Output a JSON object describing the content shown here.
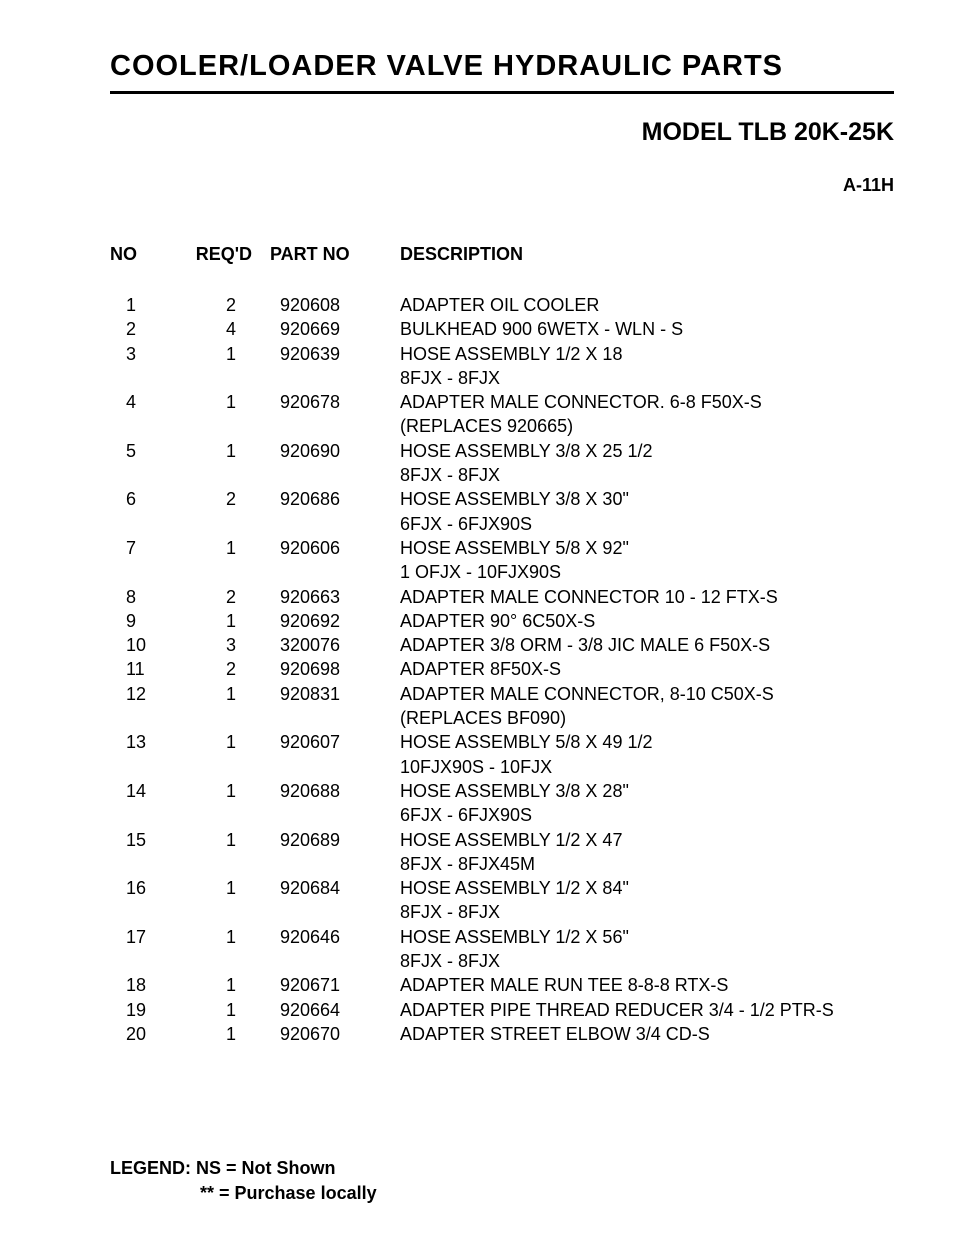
{
  "title": "COOLER/LOADER VALVE HYDRAULIC PARTS",
  "model": "MODEL TLB 20K-25K",
  "docCode": "A-11H",
  "headers": {
    "no": "NO",
    "reqd": "REQ'D",
    "partno": "PART NO",
    "description": "DESCRIPTION"
  },
  "rows": [
    {
      "no": "1",
      "reqd": "2",
      "partno": "920608",
      "desc": [
        "ADAPTER OIL COOLER"
      ]
    },
    {
      "no": "2",
      "reqd": "4",
      "partno": "920669",
      "desc": [
        "BULKHEAD 900 6WETX - WLN - S"
      ]
    },
    {
      "no": "3",
      "reqd": "1",
      "partno": "920639",
      "desc": [
        "HOSE ASSEMBLY 1/2 X 18",
        "8FJX - 8FJX"
      ]
    },
    {
      "no": "4",
      "reqd": "1",
      "partno": "920678",
      "desc": [
        "ADAPTER MALE CONNECTOR. 6-8 F50X-S",
        "(REPLACES 920665)"
      ]
    },
    {
      "no": "5",
      "reqd": "1",
      "partno": "920690",
      "desc": [
        "HOSE ASSEMBLY 3/8 X 25 1/2",
        "8FJX - 8FJX"
      ]
    },
    {
      "no": "6",
      "reqd": "2",
      "partno": "920686",
      "desc": [
        "HOSE ASSEMBLY 3/8 X 30\"",
        "6FJX - 6FJX90S"
      ]
    },
    {
      "no": "7",
      "reqd": "1",
      "partno": "920606",
      "desc": [
        "HOSE ASSEMBLY 5/8 X 92\"",
        "1 OFJX - 10FJX90S"
      ]
    },
    {
      "no": "8",
      "reqd": "2",
      "partno": "920663",
      "desc": [
        "ADAPTER MALE CONNECTOR 10 - 12 FTX-S"
      ]
    },
    {
      "no": "9",
      "reqd": "1",
      "partno": "920692",
      "desc": [
        "ADAPTER 90° 6C50X-S"
      ]
    },
    {
      "no": "10",
      "reqd": "3",
      "partno": "320076",
      "desc": [
        "ADAPTER 3/8 ORM - 3/8 JIC MALE 6 F50X-S"
      ]
    },
    {
      "no": "11",
      "reqd": "2",
      "partno": "920698",
      "desc": [
        "ADAPTER 8F50X-S"
      ]
    },
    {
      "no": "12",
      "reqd": "1",
      "partno": "920831",
      "desc": [
        "ADAPTER MALE CONNECTOR, 8-10 C50X-S",
        "(REPLACES BF090)"
      ]
    },
    {
      "no": "13",
      "reqd": "1",
      "partno": "920607",
      "desc": [
        "HOSE ASSEMBLY 5/8 X 49 1/2",
        "10FJX90S - 10FJX"
      ]
    },
    {
      "no": "14",
      "reqd": "1",
      "partno": "920688",
      "desc": [
        "HOSE ASSEMBLY 3/8 X 28\"",
        "6FJX - 6FJX90S"
      ]
    },
    {
      "no": "15",
      "reqd": "1",
      "partno": "920689",
      "desc": [
        "HOSE ASSEMBLY 1/2 X 47",
        "8FJX - 8FJX45M"
      ]
    },
    {
      "no": "16",
      "reqd": "1",
      "partno": "920684",
      "desc": [
        "HOSE ASSEMBLY 1/2 X 84\"",
        "8FJX - 8FJX"
      ]
    },
    {
      "no": "17",
      "reqd": "1",
      "partno": "920646",
      "desc": [
        "HOSE ASSEMBLY 1/2 X 56\"",
        "8FJX - 8FJX"
      ]
    },
    {
      "no": "18",
      "reqd": "1",
      "partno": "920671",
      "desc": [
        "ADAPTER MALE RUN TEE 8-8-8 RTX-S"
      ]
    },
    {
      "no": "19",
      "reqd": "1",
      "partno": "920664",
      "desc": [
        "ADAPTER PIPE THREAD REDUCER 3/4 - 1/2 PTR-S"
      ]
    },
    {
      "no": "20",
      "reqd": "1",
      "partno": "920670",
      "desc": [
        "ADAPTER STREET ELBOW 3/4 CD-S"
      ]
    }
  ],
  "legend": {
    "line1": "LEGEND: NS = Not Shown",
    "line2": "** = Purchase locally"
  }
}
